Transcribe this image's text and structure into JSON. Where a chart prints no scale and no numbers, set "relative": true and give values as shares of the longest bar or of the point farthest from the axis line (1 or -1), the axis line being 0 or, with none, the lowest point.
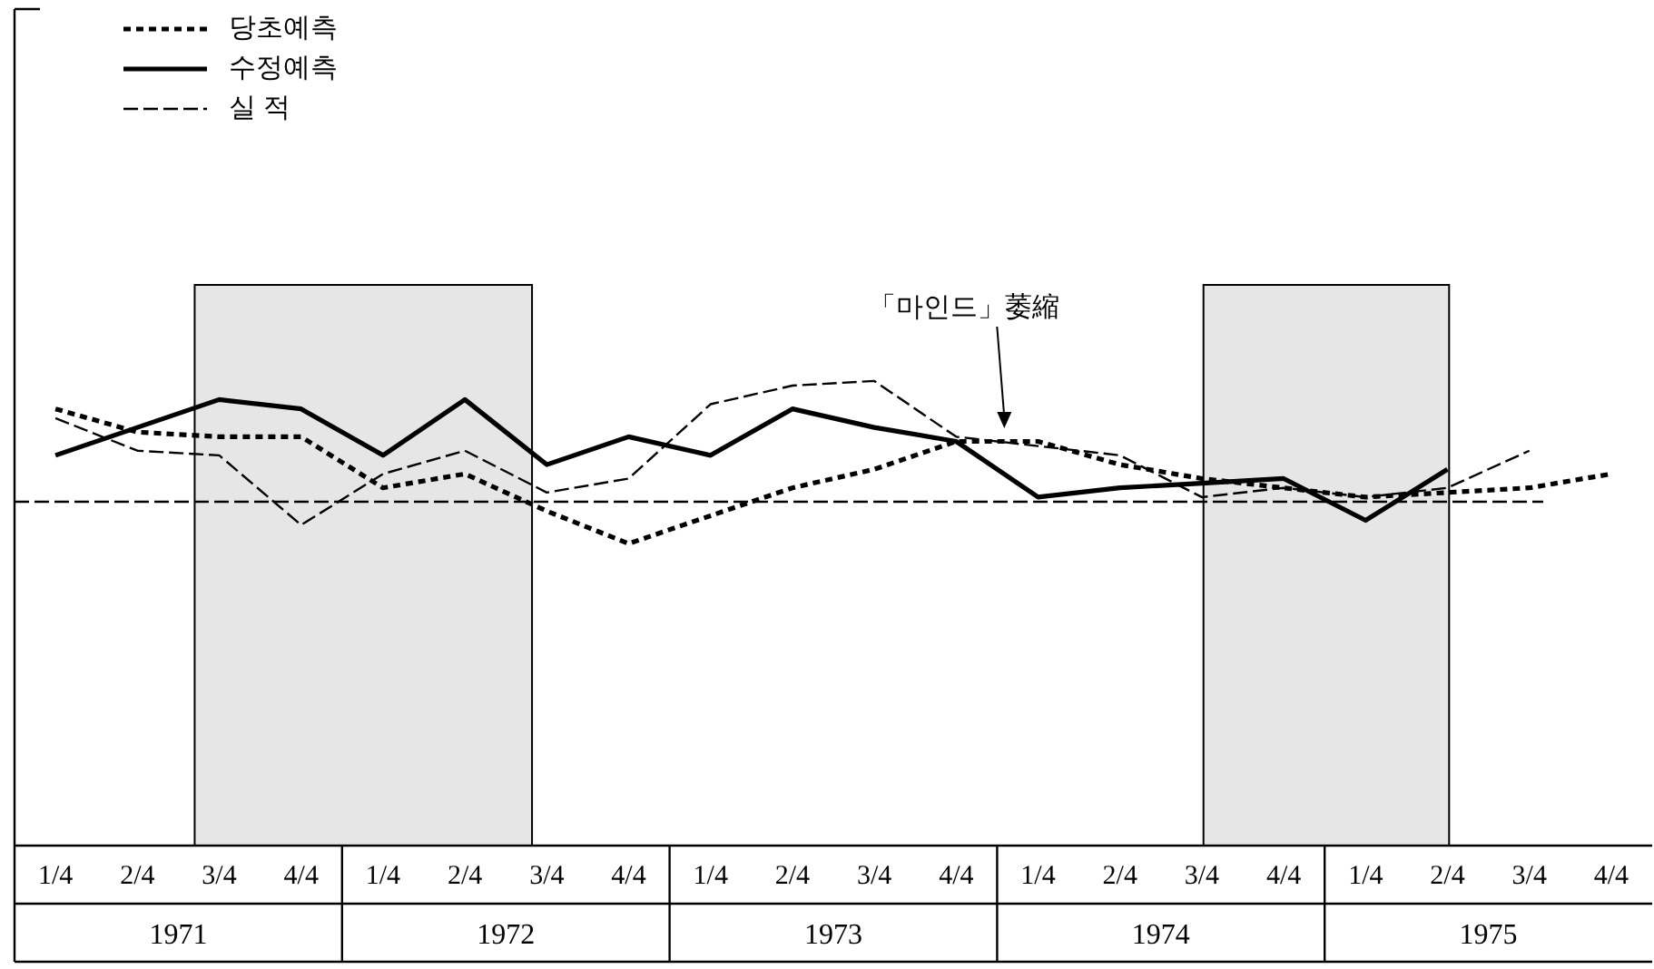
{
  "chart_data": {
    "type": "line",
    "relative": true,
    "categories": [
      "1/4",
      "2/4",
      "3/4",
      "4/4",
      "1/4",
      "2/4",
      "3/4",
      "4/4",
      "1/4",
      "2/4",
      "3/4",
      "4/4",
      "1/4",
      "2/4",
      "3/4",
      "4/4",
      "1/4",
      "2/4",
      "3/4",
      "4/4"
    ],
    "x2lim": [
      1970.5,
      1975.5
    ],
    "x2ticks": [
      1971,
      1972,
      1973,
      1974,
      1975
    ],
    "series": [
      {
        "name": "당초예측",
        "color": "#000000",
        "line_style": "dotted",
        "values": [
          0.94,
          0.89,
          0.88,
          0.88,
          0.77,
          0.8,
          0.72,
          0.65,
          0.71,
          0.77,
          0.81,
          0.87,
          0.87,
          0.82,
          0.79,
          0.77,
          0.75,
          0.76,
          0.77,
          0.8
        ]
      },
      {
        "name": "수정예측",
        "color": "#000000",
        "line_style": "solid",
        "values": [
          0.84,
          0.9,
          0.96,
          0.94,
          0.84,
          0.96,
          0.82,
          0.88,
          0.84,
          0.94,
          0.9,
          0.87,
          0.75,
          0.77,
          0.78,
          0.79,
          0.7,
          0.81,
          null,
          null
        ]
      },
      {
        "name": "실 적",
        "color": "#000000",
        "line_style": "dashed",
        "values": [
          0.92,
          0.85,
          0.84,
          0.69,
          0.8,
          0.85,
          0.76,
          0.79,
          0.95,
          0.99,
          1.0,
          0.88,
          0.86,
          0.84,
          0.75,
          0.77,
          0.75,
          0.77,
          0.85,
          null
        ]
      }
    ],
    "ref_lines": [
      {
        "axis": "y",
        "value": 0.74,
        "line_style": "dashed",
        "color": "#000000"
      }
    ],
    "bands": [
      {
        "axis": "x2",
        "from": 1971.05,
        "to": 1972.08,
        "color": "#e6e6e6"
      },
      {
        "axis": "x2",
        "from": 1974.13,
        "to": 1974.88,
        "color": "#e6e6e6"
      }
    ],
    "annotations": [
      "「마인드」萎縮"
    ],
    "legend": "top left",
    "grid": false
  }
}
